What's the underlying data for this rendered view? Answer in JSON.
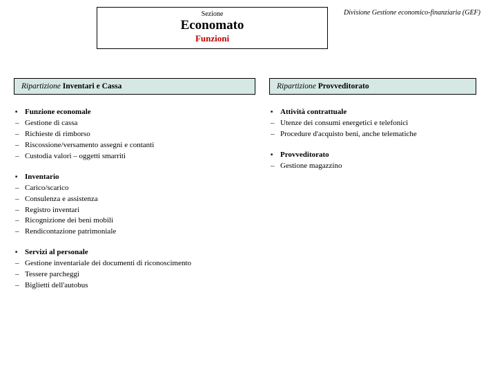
{
  "header": {
    "label": "Sezione",
    "title": "Economato",
    "subtitle": "Funzioni"
  },
  "division": "Divisione Gestione economico-finanziaria (GEF)",
  "left": {
    "ripartizione_prefix": "Ripartizione ",
    "ripartizione_bold": "Inventari e Cassa",
    "groups": [
      {
        "head": "Funzione economale",
        "items": [
          "Gestione di cassa",
          "Richieste di rimborso",
          "Riscossione/versamento assegni e contanti",
          "Custodia valori – oggetti smarriti"
        ]
      },
      {
        "head": "Inventario",
        "items": [
          "Carico/scarico",
          "Consulenza e assistenza",
          "Registro inventari",
          "Ricognizione dei beni mobili",
          "Rendicontazione patrimoniale"
        ]
      },
      {
        "head": "Servizi al personale",
        "items": [
          "Gestione inventariale dei documenti di riconoscimento",
          "Tessere parcheggi",
          "Biglietti dell'autobus"
        ]
      }
    ]
  },
  "right": {
    "ripartizione_prefix": "Ripartizione ",
    "ripartizione_bold": "Provveditorato",
    "groups": [
      {
        "head": "Attività contrattuale",
        "items": [
          "Utenze dei consumi energetici e telefonici",
          "Procedure d'acquisto beni, anche telematiche"
        ]
      },
      {
        "head": "Provveditorato",
        "items": [
          "Gestione magazzino"
        ]
      }
    ]
  }
}
